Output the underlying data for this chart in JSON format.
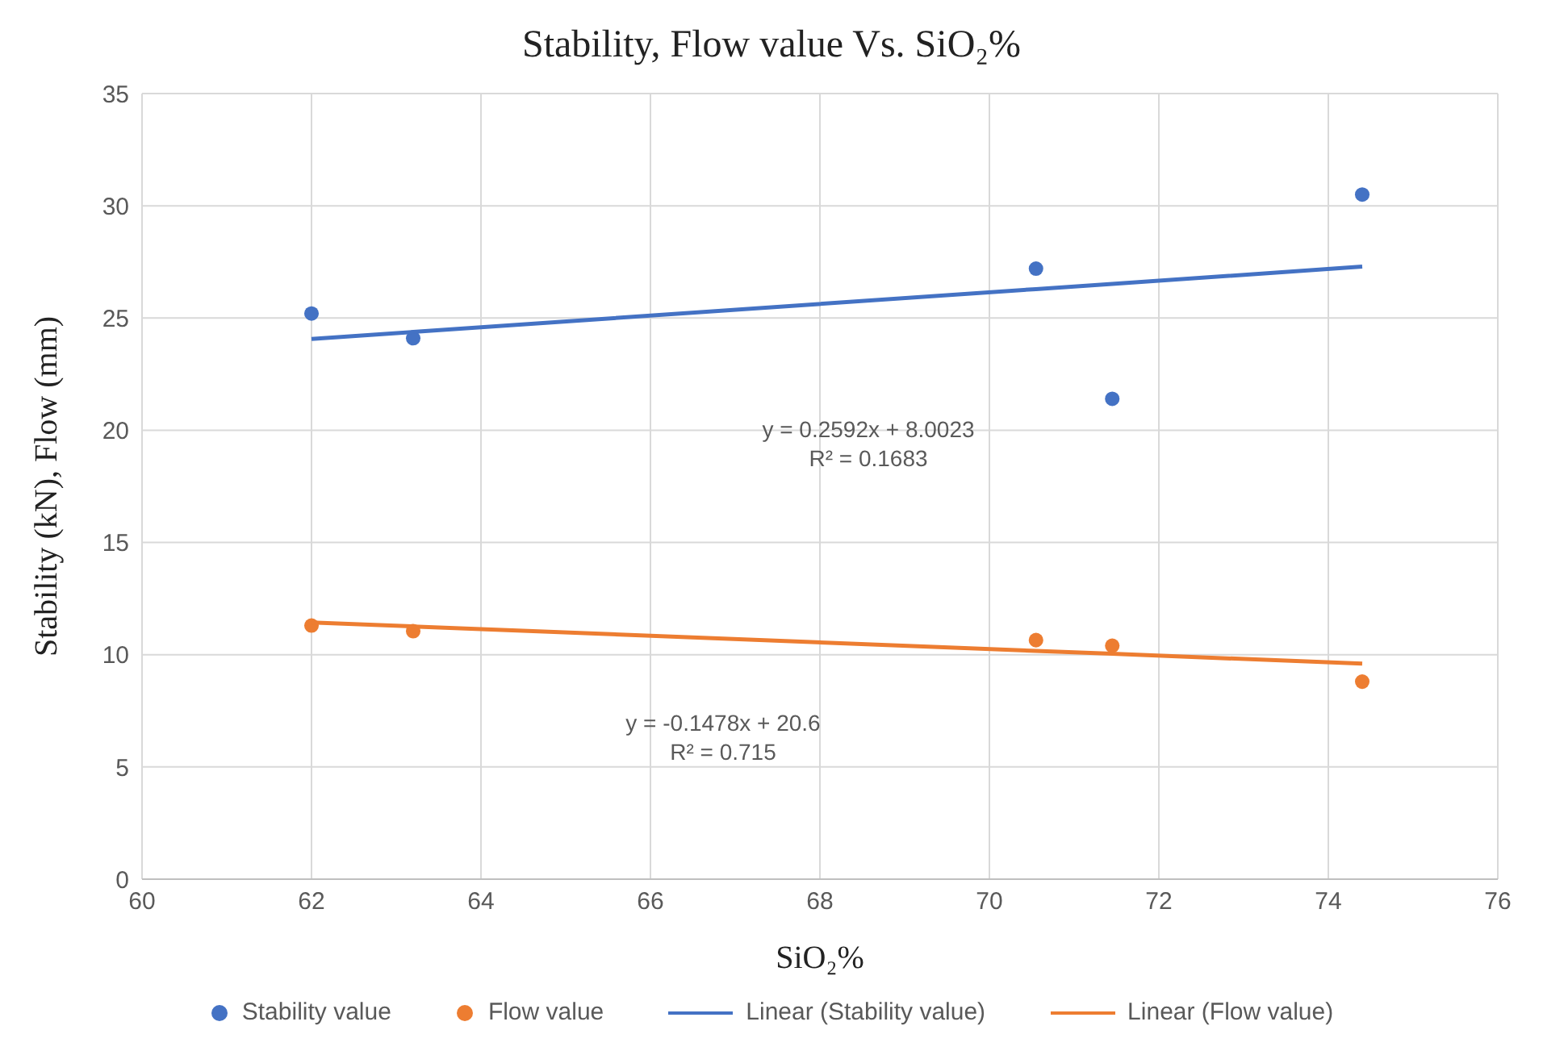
{
  "chart_data": {
    "type": "scatter",
    "title": "Stability, Flow value Vs. SiO₂%",
    "xlabel": "SiO₂%",
    "ylabel": "Stability (kN), Flow (mm)",
    "x": [
      62.0,
      63.2,
      70.55,
      71.45,
      74.4
    ],
    "series": [
      {
        "name": "Stability value",
        "color": "#4472c4",
        "values": [
          25.2,
          24.1,
          27.2,
          21.4,
          30.5
        ]
      },
      {
        "name": "Flow value",
        "color": "#ed7d31",
        "values": [
          11.3,
          11.05,
          10.65,
          10.4,
          8.8
        ]
      },
      {
        "name": "Linear (Stability value)",
        "type": "line",
        "color": "#4472c4",
        "values": [
          24.07,
          24.38,
          26.29,
          26.52,
          27.29
        ]
      },
      {
        "name": "Linear (Flow value)",
        "type": "line",
        "color": "#ed7d31",
        "values": [
          11.44,
          11.26,
          10.17,
          10.04,
          9.6
        ]
      }
    ],
    "annotations": [
      "y = 0.2592x + 8.0023",
      "R² = 0.1683",
      "y = -0.1478x + 20.6",
      "R² = 0.715"
    ],
    "xlim": [
      60,
      76
    ],
    "xticks": [
      60,
      62,
      64,
      66,
      68,
      70,
      72,
      74,
      76
    ],
    "ylim": [
      0,
      35
    ],
    "yticks": [
      0,
      5,
      10,
      15,
      20,
      25,
      30,
      35
    ],
    "grid": true,
    "legend": "bottom"
  }
}
